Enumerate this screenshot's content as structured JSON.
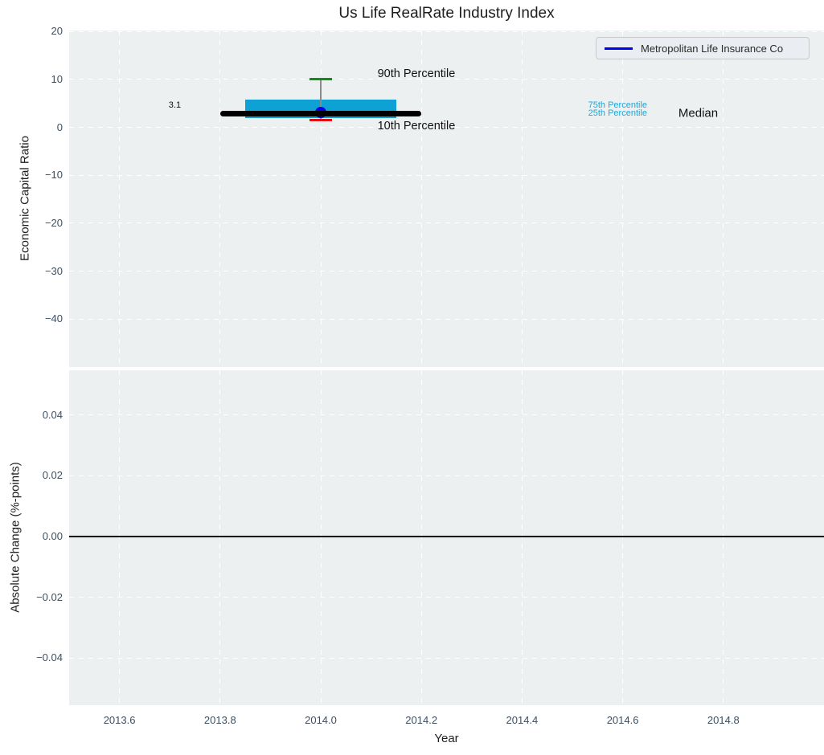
{
  "title": "Us Life RealRate Industry Index",
  "colors": {
    "panel_bg": "#edf0f0",
    "grid": "#ffffff",
    "box_fill": "#0da1d6",
    "median_line": "#000000",
    "whisker": "#8a8a8a",
    "cap_90th": "#0e8f0e",
    "cap_10th": "#e01010",
    "company_marker": "#0000ee",
    "tick_label": "#3d4e60",
    "text": "#1f1f1f",
    "percentile_label": "#21a6d6",
    "legend_bg": "#eaedf2",
    "legend_border": "#c9c9c9"
  },
  "chart_data": [
    {
      "panel": "top",
      "type": "boxplot",
      "title": "Us Life RealRate Industry Index",
      "ylabel": "Economic Capital Ratio",
      "xlim": [
        2013.5,
        2015.0
      ],
      "ylim": [
        -50,
        20.2
      ],
      "grid": "white dashed, on",
      "legend": {
        "label": "Metropolitan Life Insurance Co",
        "position": "upper right"
      },
      "yticks": [
        {
          "v": 20,
          "label": "20"
        },
        {
          "v": 10,
          "label": "10"
        },
        {
          "v": 0,
          "label": "0"
        },
        {
          "v": -10,
          "label": "−10"
        },
        {
          "v": -20,
          "label": "−20"
        },
        {
          "v": -30,
          "label": "−30"
        },
        {
          "v": -40,
          "label": "−40"
        }
      ],
      "xticks": [
        2013.6,
        2013.8,
        2014.0,
        2014.2,
        2014.4,
        2014.6,
        2014.8
      ],
      "box": {
        "x": 2014.0,
        "company": {
          "name": "Metropolitan Life Insurance Co",
          "value": 3.1
        },
        "median": 2.8,
        "median_xspan": [
          2013.8,
          2014.2
        ],
        "p25": 2.0,
        "p75": 5.8,
        "box_xspan": [
          2013.85,
          2014.15
        ],
        "p10": 1.6,
        "p90": 10.0,
        "cap_halfwidth": 0.022
      },
      "annotations": [
        {
          "text": "3.1",
          "x": 2013.71,
          "y": 4.6,
          "size": 11,
          "color": "#111111"
        },
        {
          "text": "90th Percentile",
          "x": 2014.19,
          "y": 11.2,
          "size": 14.5,
          "color": "#111111"
        },
        {
          "text": "10th Percentile",
          "x": 2014.19,
          "y": 0.3,
          "size": 14.5,
          "color": "#111111"
        },
        {
          "text": "75th Percentile",
          "x": 2014.59,
          "y": 4.7,
          "size": 11,
          "color": "#21a6d6"
        },
        {
          "text": "25th Percentile",
          "x": 2014.59,
          "y": 2.9,
          "size": 11,
          "color": "#21a6d6"
        },
        {
          "text": "Median",
          "x": 2014.75,
          "y": 3.0,
          "size": 15,
          "color": "#111111"
        }
      ]
    },
    {
      "panel": "bottom",
      "type": "line",
      "ylabel": "Absolute Change (%-points)",
      "xlabel": "Year",
      "xlim": [
        2013.5,
        2015.0
      ],
      "ylim": [
        -0.0556,
        0.0548
      ],
      "grid": "white dashed, on",
      "yticks": [
        {
          "v": 0.04,
          "label": "0.04"
        },
        {
          "v": 0.02,
          "label": "0.02"
        },
        {
          "v": 0.0,
          "label": "0.00"
        },
        {
          "v": -0.02,
          "label": "−0.02"
        },
        {
          "v": -0.04,
          "label": "−0.04"
        }
      ],
      "xticks": [
        {
          "v": 2013.6,
          "label": "2013.6"
        },
        {
          "v": 2013.8,
          "label": "2013.8"
        },
        {
          "v": 2014.0,
          "label": "2014.0"
        },
        {
          "v": 2014.2,
          "label": "2014.2"
        },
        {
          "v": 2014.4,
          "label": "2014.4"
        },
        {
          "v": 2014.6,
          "label": "2014.6"
        },
        {
          "v": 2014.8,
          "label": "2014.8"
        }
      ],
      "baseline": {
        "y": 0.0,
        "color": "#000000",
        "width": 2
      }
    }
  ]
}
